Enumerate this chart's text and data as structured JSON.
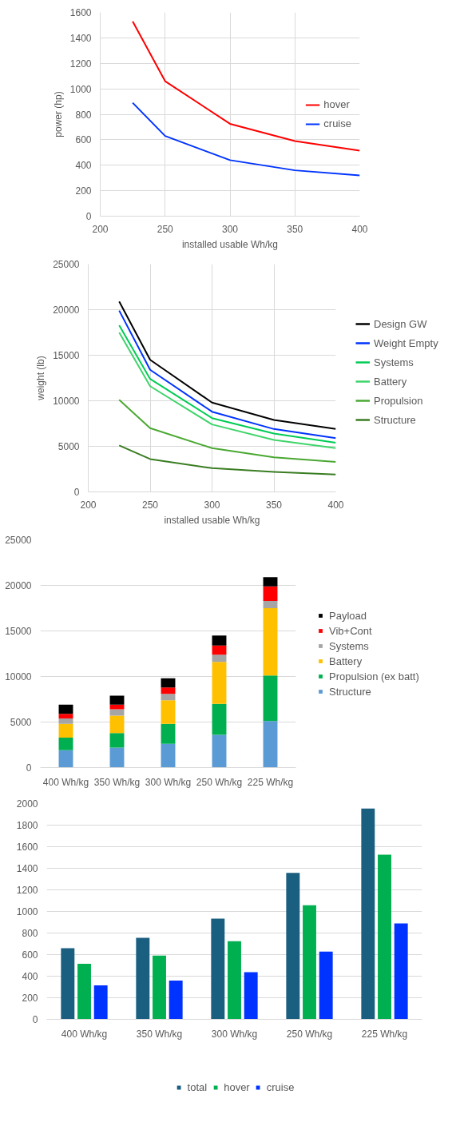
{
  "chart_data": [
    {
      "type": "line",
      "xlabel": "installed usable Wh/kg",
      "ylabel": "power (hp)",
      "x": [
        225,
        250,
        300,
        350,
        400
      ],
      "xlim": [
        200,
        400
      ],
      "xticks": [
        200,
        250,
        300,
        350,
        400
      ],
      "ylim": [
        0,
        1600
      ],
      "yticks": [
        0,
        200,
        400,
        600,
        800,
        1000,
        1200,
        1400,
        1600
      ],
      "grid": true,
      "legend": "right",
      "series": [
        {
          "name": "hover",
          "color": "#ff0000",
          "values": [
            1530,
            1060,
            725,
            590,
            515
          ]
        },
        {
          "name": "cruise",
          "color": "#0033ff",
          "values": [
            890,
            630,
            440,
            360,
            320
          ]
        }
      ]
    },
    {
      "type": "line",
      "xlabel": "installed usable Wh/kg",
      "ylabel": "weight (lb)",
      "x": [
        225,
        250,
        300,
        350,
        400
      ],
      "xlim": [
        200,
        400
      ],
      "xticks": [
        200,
        250,
        300,
        350,
        400
      ],
      "ylim": [
        0,
        25000
      ],
      "yticks": [
        0,
        5000,
        10000,
        15000,
        20000,
        25000
      ],
      "grid": true,
      "legend": "right",
      "series": [
        {
          "name": "Design GW",
          "color": "#000000",
          "values": [
            20900,
            14500,
            9800,
            7900,
            6900
          ]
        },
        {
          "name": "Weight Empty",
          "color": "#0033ff",
          "values": [
            19900,
            13400,
            8800,
            6900,
            5900
          ]
        },
        {
          "name": "Systems",
          "color": "#00cc55",
          "values": [
            18300,
            12400,
            8100,
            6400,
            5400
          ]
        },
        {
          "name": "Battery",
          "color": "#3fd46a",
          "values": [
            17500,
            11600,
            7400,
            5700,
            4800
          ]
        },
        {
          "name": "Propulsion",
          "color": "#4aa832",
          "values": [
            10100,
            7000,
            4800,
            3800,
            3300
          ]
        },
        {
          "name": "Structure",
          "color": "#3a7d22",
          "values": [
            5100,
            3600,
            2600,
            2200,
            1900
          ]
        }
      ]
    },
    {
      "type": "bar",
      "stacked": true,
      "categories": [
        "400 Wh/kg",
        "350 Wh/kg",
        "300 Wh/kg",
        "250 Wh/kg",
        "225 Wh/kg"
      ],
      "ylim": [
        0,
        25000
      ],
      "yticks": [
        0,
        5000,
        10000,
        15000,
        20000,
        25000
      ],
      "grid": "y",
      "legend": "right",
      "series": [
        {
          "name": "Structure",
          "color": "#5b9bd5",
          "values": [
            1900,
            2200,
            2600,
            3600,
            5100
          ]
        },
        {
          "name": "Propulsion (ex batt)",
          "color": "#00b050",
          "values": [
            1400,
            1600,
            2200,
            3400,
            5000
          ]
        },
        {
          "name": "Battery",
          "color": "#ffc000",
          "values": [
            1500,
            1900,
            2600,
            4600,
            7400
          ]
        },
        {
          "name": "Systems",
          "color": "#a5a5a5",
          "values": [
            600,
            700,
            700,
            800,
            800
          ]
        },
        {
          "name": "Vib+Cont",
          "color": "#ff0000",
          "values": [
            500,
            500,
            700,
            1000,
            1600
          ]
        },
        {
          "name": "Payload",
          "color": "#000000",
          "values": [
            1000,
            1000,
            1000,
            1100,
            1000
          ]
        }
      ]
    },
    {
      "type": "bar",
      "categories": [
        "400 Wh/kg",
        "350 Wh/kg",
        "300 Wh/kg",
        "250 Wh/kg",
        "225 Wh/kg"
      ],
      "ylim": [
        0,
        2000
      ],
      "yticks": [
        0,
        200,
        400,
        600,
        800,
        1000,
        1200,
        1400,
        1600,
        1800,
        2000
      ],
      "grid": "y",
      "legend": "bottom",
      "series": [
        {
          "name": "total",
          "color": "#1a5e80",
          "values": [
            660,
            755,
            933,
            1358,
            1954
          ]
        },
        {
          "name": "hover",
          "color": "#00b050",
          "values": [
            515,
            590,
            725,
            1057,
            1526
          ]
        },
        {
          "name": "cruise",
          "color": "#0033ff",
          "values": [
            315,
            360,
            437,
            628,
            889
          ]
        }
      ]
    }
  ]
}
